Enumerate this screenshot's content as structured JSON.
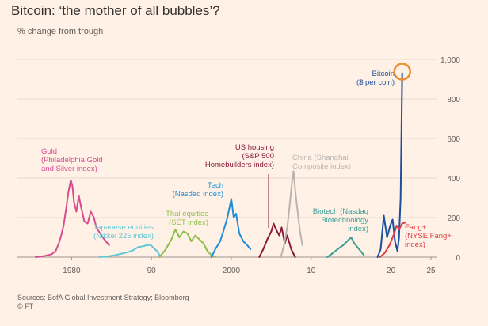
{
  "title": "Bitcoin: ‘the mother of all bubbles’?",
  "subtitle": "% change from trough",
  "sources": "Sources: BofA Global Investment Strategy; Bloomberg",
  "copyright": "© FT",
  "chart_data": {
    "type": "line",
    "ylim": [
      0,
      1000
    ],
    "y_ticks": [
      0,
      200,
      400,
      600,
      800,
      1000
    ],
    "y_tick_labels": [
      "0",
      "200",
      "400",
      "600",
      "800",
      "1,000"
    ],
    "x_tick_labels": [
      "1980",
      "90",
      "2000",
      "10",
      "20",
      "25"
    ],
    "grid": true,
    "highlight": "Bitcoin peak",
    "colors": {
      "background": "#fff1e5",
      "gold": "#d64d8f",
      "japan": "#5ec8d8",
      "thai": "#8dbf4a",
      "tech": "#1f8ed8",
      "us_housing": "#8b1a3c",
      "china": "#b9b4b0",
      "biotech": "#3d9e97",
      "bitcoin": "#1c4f9c",
      "fang": "#e03a44",
      "highlight_ring": "#ec8f33"
    },
    "series": [
      {
        "key": "gold",
        "color": "#d64d8f",
        "label": [
          "Gold",
          "(Philadelphia Gold",
          "and Silver index)"
        ],
        "x": [
          1975.5,
          1976.5,
          1977.5,
          1978,
          1978.4,
          1978.7,
          1979,
          1979.3,
          1979.6,
          1979.9,
          1980.1,
          1980.3,
          1980.6,
          1980.9,
          1981.2,
          1981.6,
          1982,
          1982.4,
          1982.8,
          1983.1,
          1983.5,
          1983.9,
          1984.3,
          1984.7
        ],
        "y": [
          0,
          5,
          15,
          30,
          70,
          110,
          160,
          240,
          330,
          390,
          360,
          280,
          230,
          310,
          250,
          180,
          170,
          230,
          200,
          150,
          125,
          100,
          80,
          60
        ]
      },
      {
        "key": "japan",
        "color": "#5ec8d8",
        "label": [
          "Japanese equities",
          "(Nikkei 225 index)"
        ],
        "x": [
          1983.5,
          1984.5,
          1985.5,
          1986.3,
          1987,
          1987.7,
          1988.3,
          1988.9,
          1989.4,
          1989.9,
          1990.3,
          1990.7,
          1991.1
        ],
        "y": [
          0,
          4,
          10,
          18,
          25,
          35,
          50,
          55,
          60,
          62,
          45,
          30,
          5
        ]
      },
      {
        "key": "thai",
        "color": "#8dbf4a",
        "label": [
          "Thai equities",
          "(SET index)"
        ],
        "x": [
          1991,
          1991.8,
          1992.5,
          1993,
          1993.5,
          1994,
          1994.5,
          1995,
          1995.5,
          1996,
          1996.5,
          1997,
          1997.5,
          1998
        ],
        "y": [
          0,
          40,
          90,
          140,
          100,
          130,
          120,
          80,
          110,
          90,
          70,
          30,
          10,
          0
        ]
      },
      {
        "key": "tech",
        "color": "#1f8ed8",
        "label": [
          "Tech",
          "(Nasdaq index)"
        ],
        "x": [
          1997.5,
          1998,
          1998.6,
          1999,
          1999.5,
          2000,
          2000.3,
          2000.6,
          2001,
          2001.5,
          2002,
          2002.4
        ],
        "y": [
          0,
          40,
          80,
          130,
          200,
          295,
          200,
          220,
          120,
          80,
          60,
          40
        ]
      },
      {
        "key": "us_housing",
        "color": "#8b1a3c",
        "label": [
          "US housing",
          "(S&P 500",
          "Homebuilders index)"
        ],
        "x": [
          2003.5,
          2004,
          2004.5,
          2005,
          2005.3,
          2005.6,
          2006,
          2006.3,
          2006.7,
          2007,
          2007.5,
          2008
        ],
        "y": [
          0,
          40,
          90,
          130,
          170,
          140,
          110,
          150,
          70,
          110,
          40,
          0
        ]
      },
      {
        "key": "china",
        "color": "#b9b4b0",
        "label": [
          "China (Shanghai",
          "Composite index)"
        ],
        "x": [
          2006.2,
          2006.6,
          2007,
          2007.3,
          2007.6,
          2007.8,
          2008,
          2008.3,
          2008.6,
          2008.9
        ],
        "y": [
          0,
          60,
          150,
          260,
          380,
          435,
          340,
          230,
          130,
          60
        ]
      },
      {
        "key": "biotech",
        "color": "#3d9e97",
        "label": [
          "Biotech (Nasdaq",
          "Biotechnology",
          "index)"
        ],
        "x": [
          2012,
          2012.7,
          2013.3,
          2014,
          2014.5,
          2015,
          2015.4,
          2015.8,
          2016.2,
          2016.6
        ],
        "y": [
          0,
          20,
          40,
          60,
          80,
          100,
          70,
          50,
          30,
          10
        ]
      },
      {
        "key": "bitcoin",
        "color": "#1c4f9c",
        "label": [
          "Bitcoin",
          "($ per coin)"
        ],
        "x": [
          2018.3,
          2018.7,
          2019.1,
          2019.5,
          2019.9,
          2020.2,
          2020.5,
          2020.8,
          2021,
          2021.2,
          2021.4
        ],
        "y": [
          0,
          40,
          210,
          100,
          160,
          190,
          80,
          30,
          100,
          300,
          930
        ]
      },
      {
        "key": "fang",
        "color": "#e03a44",
        "label": [
          "Fang+",
          "(NYSE Fang+",
          "index)"
        ],
        "x": [
          2018.6,
          2019.2,
          2019.8,
          2020.1,
          2020.4,
          2020.7,
          2021,
          2021.4,
          2021.8
        ],
        "y": [
          0,
          20,
          60,
          90,
          120,
          160,
          140,
          170,
          175
        ]
      }
    ]
  }
}
